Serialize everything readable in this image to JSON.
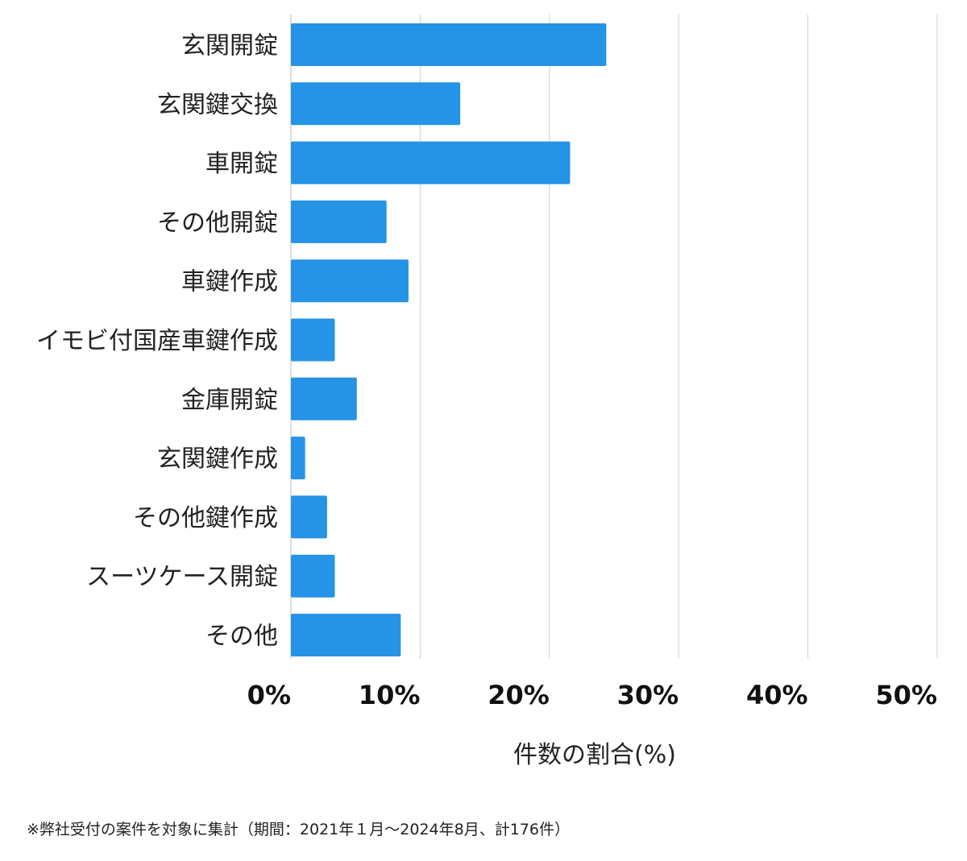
{
  "chart_data": {
    "type": "bar",
    "orientation": "horizontal",
    "categories": [
      "玄関開錠",
      "玄関鍵交換",
      "車開錠",
      "その他開錠",
      "車鍵作成",
      "イモビ付国産車鍵作成",
      "金庫開錠",
      "玄関鍵作成",
      "その他鍵作成",
      "スーツケース開錠",
      "その他"
    ],
    "values": [
      24.4,
      13.1,
      21.6,
      7.4,
      9.1,
      3.4,
      5.1,
      1.1,
      2.8,
      3.4,
      8.5
    ],
    "xlabel": "件数の割合(%)",
    "ylabel": "",
    "xlim": [
      0,
      50
    ],
    "xticks": [
      "0%",
      "10%",
      "20%",
      "30%",
      "40%",
      "50%"
    ],
    "grid": "vertical",
    "bar_color": "#2593e6",
    "grid_color": "#d0d0d0"
  },
  "footnote": "※弊社受付の案件を対象に集計（期間：2021年１月～2024年8月、計176件）"
}
